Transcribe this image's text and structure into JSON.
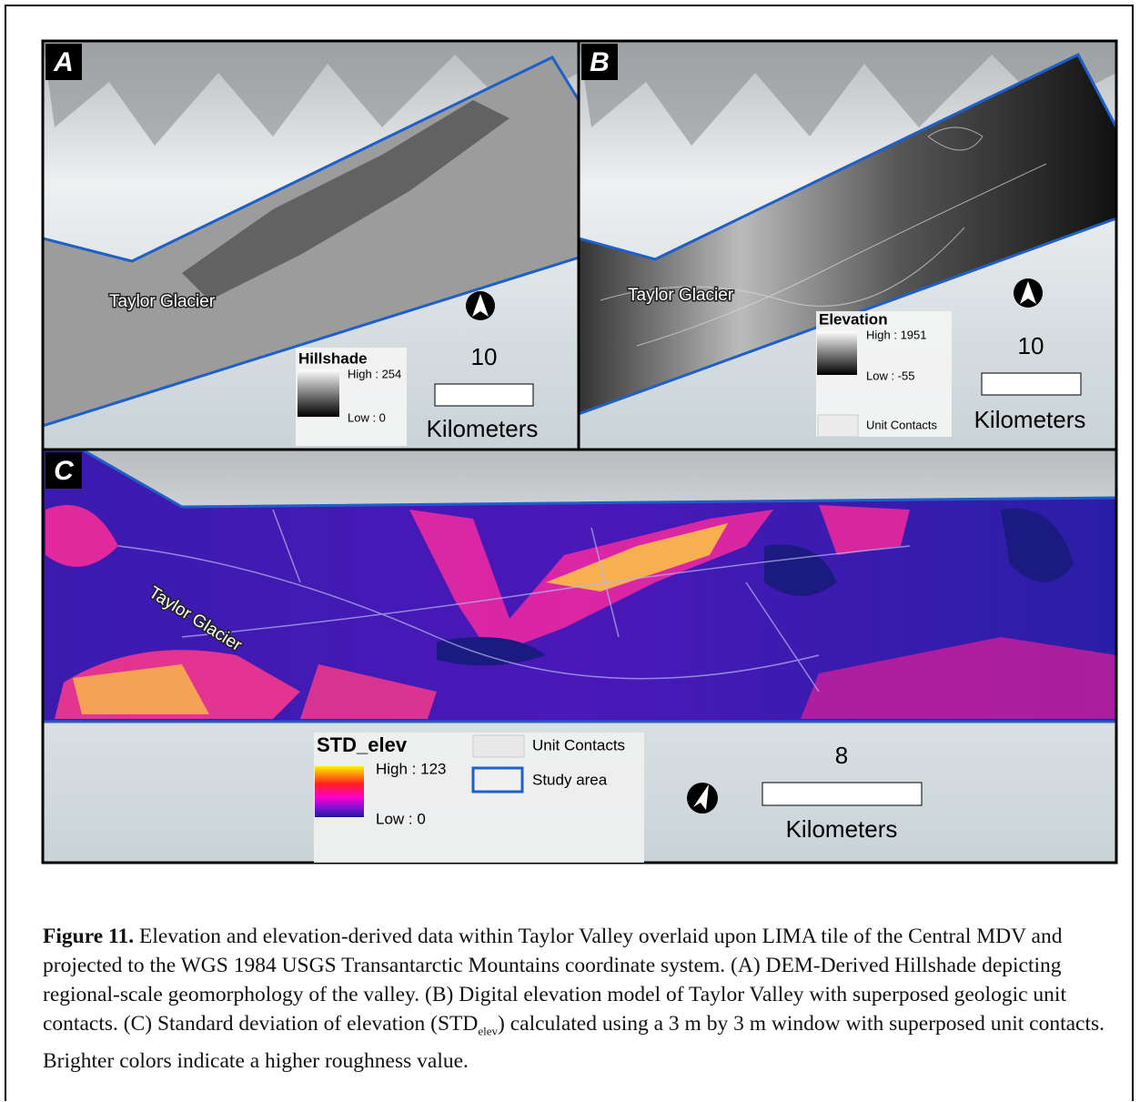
{
  "figure": {
    "panels": [
      {
        "label": "A",
        "place_label": "Taylor Glacier",
        "legend": {
          "title": "Hillshade",
          "high": "High : 254",
          "low": "Low : 0"
        },
        "scale_bar": {
          "distance": "10",
          "unit": "Kilometers"
        }
      },
      {
        "label": "B",
        "place_label": "Taylor Glacier",
        "legend": {
          "title": "Elevation",
          "high": "High : 1951",
          "low": "Low : -55",
          "contacts": "Unit Contacts"
        },
        "scale_bar": {
          "distance": "10",
          "unit": "Kilometers"
        }
      },
      {
        "label": "C",
        "place_label": "Taylor Glacier",
        "legend": {
          "title": "STD_elev",
          "high": "High : 123",
          "low": "Low : 0",
          "contacts": "Unit Contacts",
          "study_area": "Study area"
        },
        "scale_bar": {
          "distance": "8",
          "unit": "Kilometers"
        }
      }
    ]
  },
  "caption": {
    "label": "Figure 11.",
    "text_before": "Elevation and elevation-derived data within Taylor Valley overlaid upon LIMA tile of the Central MDV and projected to the WGS 1984 USGS Transantarctic Mountains coordinate system. (A) DEM-Derived Hillshade depicting regional-scale geomorphology of the valley. (B) Digital elevation model of Taylor Valley with superposed geologic unit contacts. (C) Standard deviation of elevation (STD",
    "subscript": "elev",
    "text_after": ") calculated using a 3 m by 3 m window with superposed unit contacts. Brighter colors indicate a higher roughness value."
  }
}
